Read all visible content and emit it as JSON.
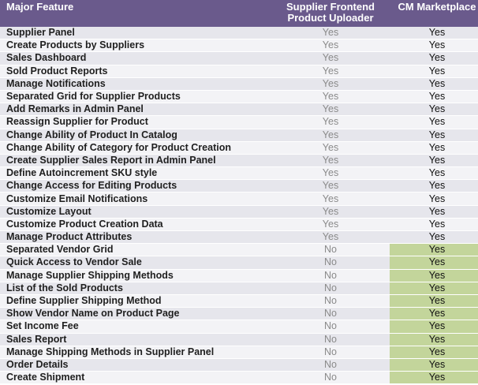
{
  "header": {
    "feature": "Major Feature",
    "supplier_line1": "Supplier Frontend",
    "supplier_line2": "Product Uploader",
    "cm": "CM Marketplace"
  },
  "colors": {
    "header_bg": "#6a5a8c",
    "row_odd": "#e6e6ec",
    "row_even": "#f3f3f6",
    "exclusive_highlight": "#c3d59b"
  },
  "rows": [
    {
      "feature": "Supplier Panel",
      "supplier": "Yes",
      "cm": "Yes"
    },
    {
      "feature": "Create Products by Suppliers",
      "supplier": "Yes",
      "cm": "Yes"
    },
    {
      "feature": "Sales Dashboard",
      "supplier": "Yes",
      "cm": "Yes"
    },
    {
      "feature": "Sold Product Reports",
      "supplier": "Yes",
      "cm": "Yes"
    },
    {
      "feature": "Manage Notifications",
      "supplier": "Yes",
      "cm": "Yes"
    },
    {
      "feature": "Separated Grid for Supplier Products",
      "supplier": "Yes",
      "cm": "Yes"
    },
    {
      "feature": "Add Remarks in Admin Panel",
      "supplier": "Yes",
      "cm": "Yes"
    },
    {
      "feature": "Reassign Supplier for Product",
      "supplier": "Yes",
      "cm": "Yes"
    },
    {
      "feature": "Change Ability of Product In Catalog",
      "supplier": "Yes",
      "cm": "Yes"
    },
    {
      "feature": "Change Ability of Category for Product Creation",
      "supplier": "Yes",
      "cm": "Yes"
    },
    {
      "feature": "Create Supplier Sales Report in Admin Panel",
      "supplier": "Yes",
      "cm": "Yes"
    },
    {
      "feature": "Define Autoincrement  SKU style",
      "supplier": "Yes",
      "cm": "Yes"
    },
    {
      "feature": "Change Access  for Editing Products",
      "supplier": "Yes",
      "cm": "Yes"
    },
    {
      "feature": "Customize Email Notifications",
      "supplier": "Yes",
      "cm": "Yes"
    },
    {
      "feature": "Customize Layout",
      "supplier": "Yes",
      "cm": "Yes"
    },
    {
      "feature": "Customize Product Creation Data",
      "supplier": "Yes",
      "cm": "Yes"
    },
    {
      "feature": "Manage Product Attributes",
      "supplier": "Yes",
      "cm": "Yes"
    },
    {
      "feature": "Separated Vendor Grid",
      "supplier": "No",
      "cm": "Yes"
    },
    {
      "feature": "Quick Access  to Vendor Sale",
      "supplier": "No",
      "cm": "Yes"
    },
    {
      "feature": "Manage Supplier Shipping Methods",
      "supplier": "No",
      "cm": "Yes"
    },
    {
      "feature": "List of the Sold Products",
      "supplier": "No",
      "cm": "Yes"
    },
    {
      "feature": "Define Supplier Shipping Method",
      "supplier": "No",
      "cm": "Yes"
    },
    {
      "feature": "Show Vendor Name on Product Page",
      "supplier": "No",
      "cm": "Yes"
    },
    {
      "feature": "Set Income Fee",
      "supplier": "No",
      "cm": "Yes"
    },
    {
      "feature": "Sales Report",
      "supplier": "No",
      "cm": "Yes"
    },
    {
      "feature": "Manage Shipping Methods in Supplier Panel",
      "supplier": "No",
      "cm": "Yes"
    },
    {
      "feature": "Order Details",
      "supplier": "No",
      "cm": "Yes"
    },
    {
      "feature": "Create Shipment",
      "supplier": "No",
      "cm": "Yes"
    }
  ]
}
